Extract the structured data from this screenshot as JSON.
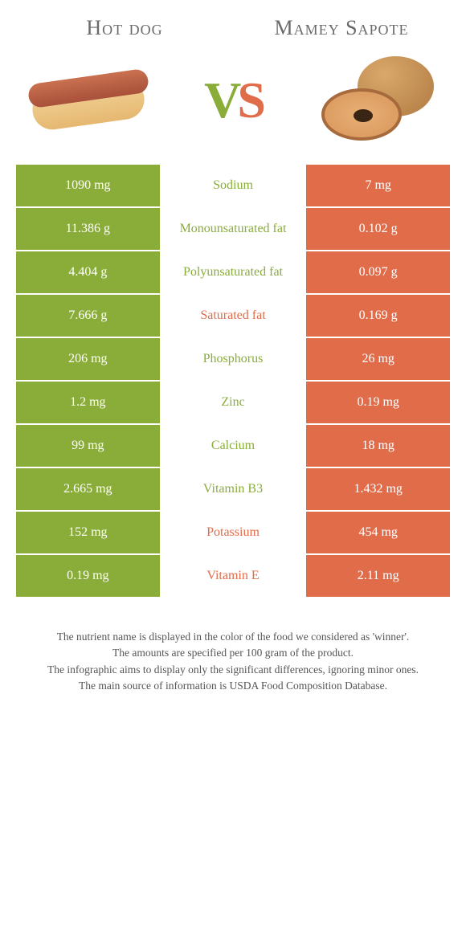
{
  "header": {
    "left_title": "Hot dog",
    "right_title": "Mamey Sapote"
  },
  "vs": {
    "v": "V",
    "s": "S"
  },
  "colors": {
    "left": "#8aad3a",
    "right": "#e06c4a",
    "bg": "#ffffff",
    "text_muted": "#888888"
  },
  "rows": [
    {
      "left": "1090 mg",
      "label": "Sodium",
      "right": "7 mg",
      "winner": "left"
    },
    {
      "left": "11.386 g",
      "label": "Monounsaturated fat",
      "right": "0.102 g",
      "winner": "left"
    },
    {
      "left": "4.404 g",
      "label": "Polyunsaturated fat",
      "right": "0.097 g",
      "winner": "left"
    },
    {
      "left": "7.666 g",
      "label": "Saturated fat",
      "right": "0.169 g",
      "winner": "right"
    },
    {
      "left": "206 mg",
      "label": "Phosphorus",
      "right": "26 mg",
      "winner": "left"
    },
    {
      "left": "1.2 mg",
      "label": "Zinc",
      "right": "0.19 mg",
      "winner": "left"
    },
    {
      "left": "99 mg",
      "label": "Calcium",
      "right": "18 mg",
      "winner": "left"
    },
    {
      "left": "2.665 mg",
      "label": "Vitamin B3",
      "right": "1.432 mg",
      "winner": "left"
    },
    {
      "left": "152 mg",
      "label": "Potassium",
      "right": "454 mg",
      "winner": "right"
    },
    {
      "left": "0.19 mg",
      "label": "Vitamin E",
      "right": "2.11 mg",
      "winner": "right"
    }
  ],
  "footer": {
    "line1": "The nutrient name is displayed in the color of the food we considered as 'winner'.",
    "line2": "The amounts are specified per 100 gram of the product.",
    "line3": "The infographic aims to display only the significant differences, ignoring minor ones.",
    "line4": "The main source of information is USDA Food Composition Database."
  }
}
